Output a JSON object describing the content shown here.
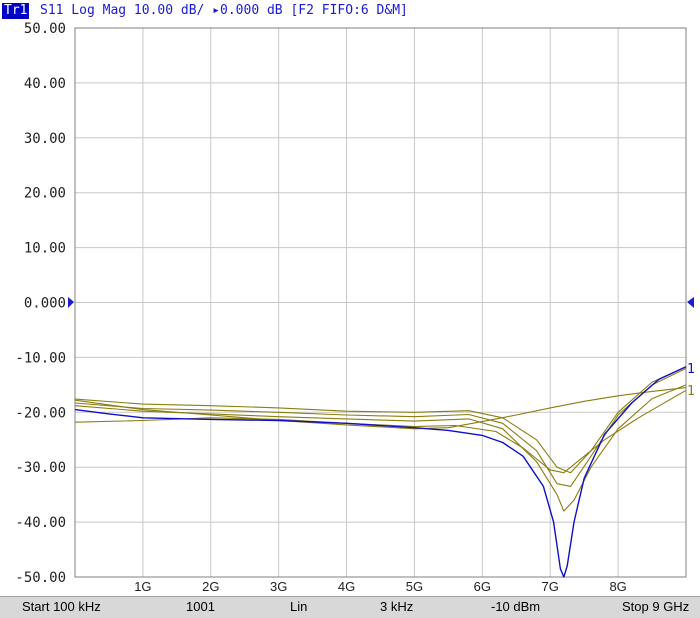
{
  "header": {
    "trace_tag": "Tr1",
    "trace_desc": "S11 Log Mag 10.00 dB/ ▸0.000 dB [F2 FIFO:6 D&M]"
  },
  "status": {
    "start": "Start 100 kHz",
    "points": "1001",
    "sweep_type": "Lin",
    "ifbw": "3 kHz",
    "power": "-10 dBm",
    "stop": "Stop 9 GHz"
  },
  "colors": {
    "background": "#ffffff",
    "grid": "#c8c8c8",
    "axis_text": "#1f1f1f",
    "reference": "#1a1ad4",
    "active_trace": "#1010c8",
    "memory_traces": "#8a7e10",
    "status_bar": "#d8d8d8"
  },
  "chart_data": {
    "type": "line",
    "title": "",
    "xlabel": "",
    "ylabel": "",
    "xlim": [
      0.0001,
      9
    ],
    "x_unit": "GHz",
    "x_tick_labels": [
      "1G",
      "2G",
      "3G",
      "4G",
      "5G",
      "6G",
      "7G",
      "8G"
    ],
    "x_tick_values": [
      1,
      2,
      3,
      4,
      5,
      6,
      7,
      8
    ],
    "ylim": [
      -50,
      50
    ],
    "y_tick_values": [
      50,
      40,
      30,
      20,
      10,
      0,
      -10,
      -20,
      -30,
      -40,
      -50
    ],
    "y_tick_labels": [
      "50.00",
      "40.00",
      "30.00",
      "20.00",
      "10.00",
      "0.000",
      "-10.00",
      "-20.00",
      "-30.00",
      "-40.00",
      "-50.00"
    ],
    "reference_level": 0,
    "grid": true,
    "end_markers": [
      "1",
      "1"
    ],
    "series": [
      {
        "color": "#1010c8",
        "x": [
          0.0001,
          0.5,
          1,
          2,
          3,
          4,
          4.5,
          5,
          5.5,
          6,
          6.3,
          6.6,
          6.9,
          7.05,
          7.15,
          7.2,
          7.25,
          7.35,
          7.5,
          7.8,
          8.2,
          8.6,
          9
        ],
        "y": [
          -19.5,
          -20.3,
          -21,
          -21.3,
          -21.5,
          -22,
          -22.4,
          -22.8,
          -23.3,
          -24.2,
          -25.5,
          -28,
          -33.5,
          -40,
          -48.5,
          -50,
          -48,
          -40,
          -32,
          -24,
          -18.3,
          -14,
          -11.7
        ]
      },
      {
        "color": "#8a7e10",
        "x": [
          0.0001,
          1,
          2,
          3,
          4,
          5,
          5.8,
          6.3,
          6.8,
          7.1,
          7.3,
          7.6,
          8,
          8.5,
          9
        ],
        "y": [
          -17.6,
          -18.5,
          -18.8,
          -19.2,
          -19.8,
          -20,
          -19.7,
          -21,
          -25,
          -30,
          -31,
          -27,
          -20,
          -14.5,
          -11.7
        ]
      },
      {
        "color": "#8a7e10",
        "x": [
          0.0001,
          1,
          2,
          3,
          4,
          5,
          5.8,
          6.3,
          6.8,
          7.1,
          7.3,
          7.6,
          8,
          8.5,
          9
        ],
        "y": [
          -18.3,
          -19.3,
          -19.6,
          -20,
          -20.5,
          -20.8,
          -20.4,
          -22,
          -27,
          -33,
          -33.5,
          -28,
          -20.5,
          -15,
          -12
        ]
      },
      {
        "color": "#8a7e10",
        "x": [
          0.0001,
          1,
          2,
          3,
          4,
          5,
          5.8,
          6.3,
          6.8,
          7.1,
          7.2,
          7.35,
          7.6,
          8,
          8.5,
          9
        ],
        "y": [
          -18.8,
          -19.8,
          -20.3,
          -20.8,
          -21.2,
          -21.6,
          -21.2,
          -23,
          -29,
          -35,
          -38,
          -36,
          -30,
          -23,
          -17.5,
          -15
        ]
      },
      {
        "color": "#8a7e10",
        "x": [
          0.0001,
          1,
          2,
          3,
          4,
          5,
          5.6,
          6.2,
          6.6,
          7,
          7.2,
          7.4,
          7.8,
          8.3,
          9
        ],
        "y": [
          -21.8,
          -21.5,
          -21,
          -21.3,
          -22,
          -22.6,
          -22.4,
          -23.5,
          -26.5,
          -30.5,
          -31,
          -29,
          -25,
          -21,
          -16
        ]
      },
      {
        "color": "#8a7e10",
        "x": [
          0.0001,
          1,
          2,
          3,
          4,
          5,
          5.5,
          6,
          6.5,
          7,
          7.5,
          8,
          8.5,
          9
        ],
        "y": [
          -17.8,
          -19.5,
          -20.5,
          -21.5,
          -22.3,
          -23,
          -22.8,
          -21.7,
          -20.5,
          -19.2,
          -18,
          -17,
          -16.2,
          -15.5
        ]
      }
    ]
  }
}
